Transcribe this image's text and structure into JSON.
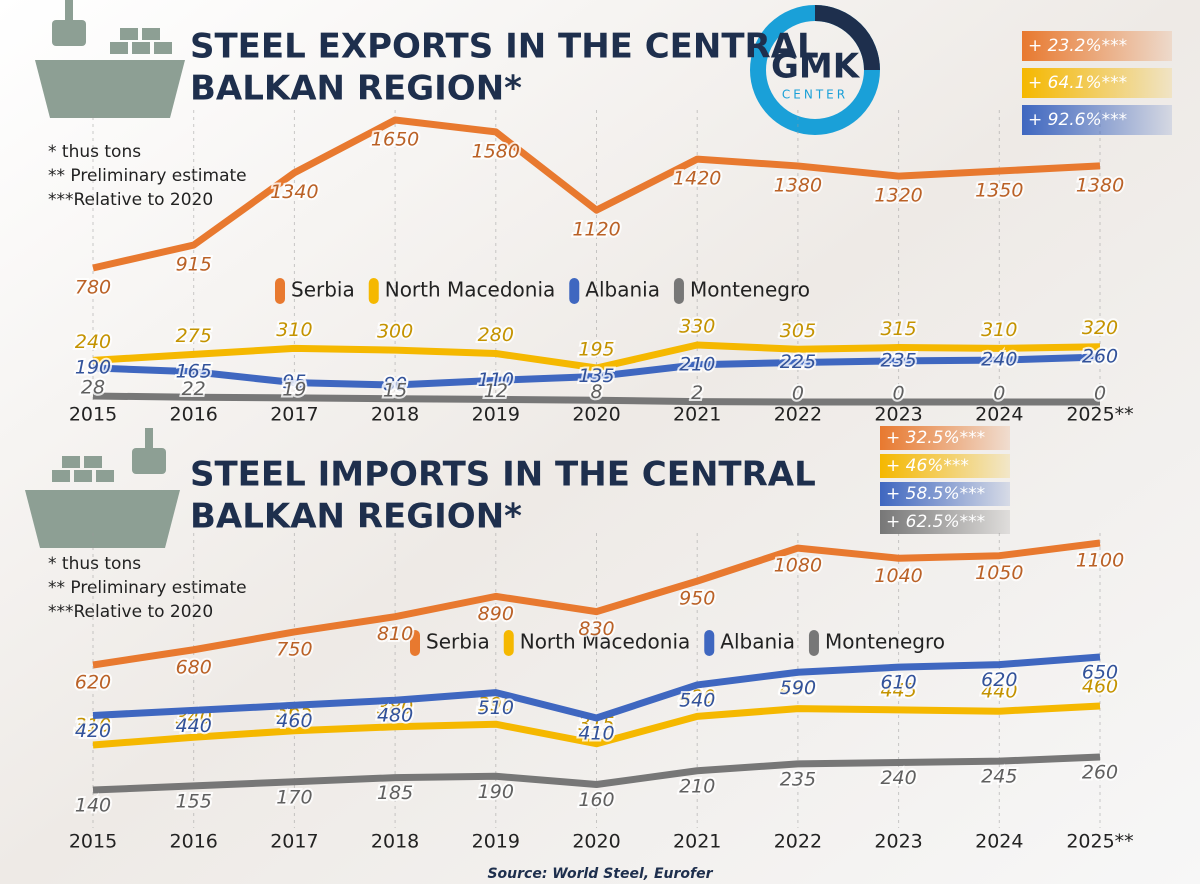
{
  "chart_data": [
    {
      "type": "line",
      "title": [
        "STEEL EXPORTS IN THE CENTRAL",
        "BALKAN REGION*"
      ],
      "notes": [
        "* thus tons",
        "** Preliminary estimate",
        "***Relative to 2020"
      ],
      "categories": [
        "2015",
        "2016",
        "2017",
        "2018",
        "2019",
        "2020",
        "2021",
        "2022",
        "2023",
        "2024",
        "2025**"
      ],
      "series": [
        {
          "name": "Serbia",
          "color": "#e8792f",
          "values": [
            780,
            915,
            1340,
            1650,
            1580,
            1120,
            1420,
            1380,
            1320,
            1350,
            1380
          ]
        },
        {
          "name": "North Macedonia",
          "color": "#f5b800",
          "values": [
            240,
            275,
            310,
            300,
            280,
            195,
            330,
            305,
            315,
            310,
            320
          ]
        },
        {
          "name": "Albania",
          "color": "#3f67c0",
          "values": [
            190,
            165,
            95,
            80,
            110,
            135,
            210,
            225,
            235,
            240,
            260
          ]
        },
        {
          "name": "Montenegro",
          "color": "#777777",
          "values": [
            28,
            22,
            19,
            15,
            12,
            8,
            2,
            0,
            0,
            0,
            0
          ]
        }
      ],
      "annotations": [
        "+ 23.2%***",
        "+ 64.1%***",
        "+ 92.6%***"
      ]
    },
    {
      "type": "line",
      "title": [
        "STEEL IMPORTS IN THE CENTRAL",
        "BALKAN REGION*"
      ],
      "notes": [
        "* thus tons",
        "** Preliminary estimate",
        "***Relative to 2020"
      ],
      "categories": [
        "2015",
        "2016",
        "2017",
        "2018",
        "2019",
        "2020",
        "2021",
        "2022",
        "2023",
        "2024",
        "2025**"
      ],
      "series": [
        {
          "name": "Serbia",
          "color": "#e8792f",
          "values": [
            620,
            680,
            750,
            810,
            890,
            830,
            950,
            1080,
            1040,
            1050,
            1100
          ]
        },
        {
          "name": "North Macedonia",
          "color": "#f5b800",
          "values": [
            310,
            340,
            365,
            380,
            390,
            315,
            420,
            450,
            445,
            440,
            460
          ]
        },
        {
          "name": "Albania",
          "color": "#3f67c0",
          "values": [
            420,
            440,
            460,
            480,
            510,
            410,
            540,
            590,
            610,
            620,
            650
          ]
        },
        {
          "name": "Montenegro",
          "color": "#777777",
          "values": [
            140,
            155,
            170,
            185,
            190,
            160,
            210,
            235,
            240,
            245,
            260
          ]
        }
      ],
      "annotations": [
        "+ 32.5%***",
        "+ 46%***",
        "+ 58.5%***",
        "+ 62.5%***"
      ]
    }
  ],
  "logo": {
    "name": "GMK",
    "sub": "CENTER"
  },
  "source": "Source: World Steel, Eurofer"
}
